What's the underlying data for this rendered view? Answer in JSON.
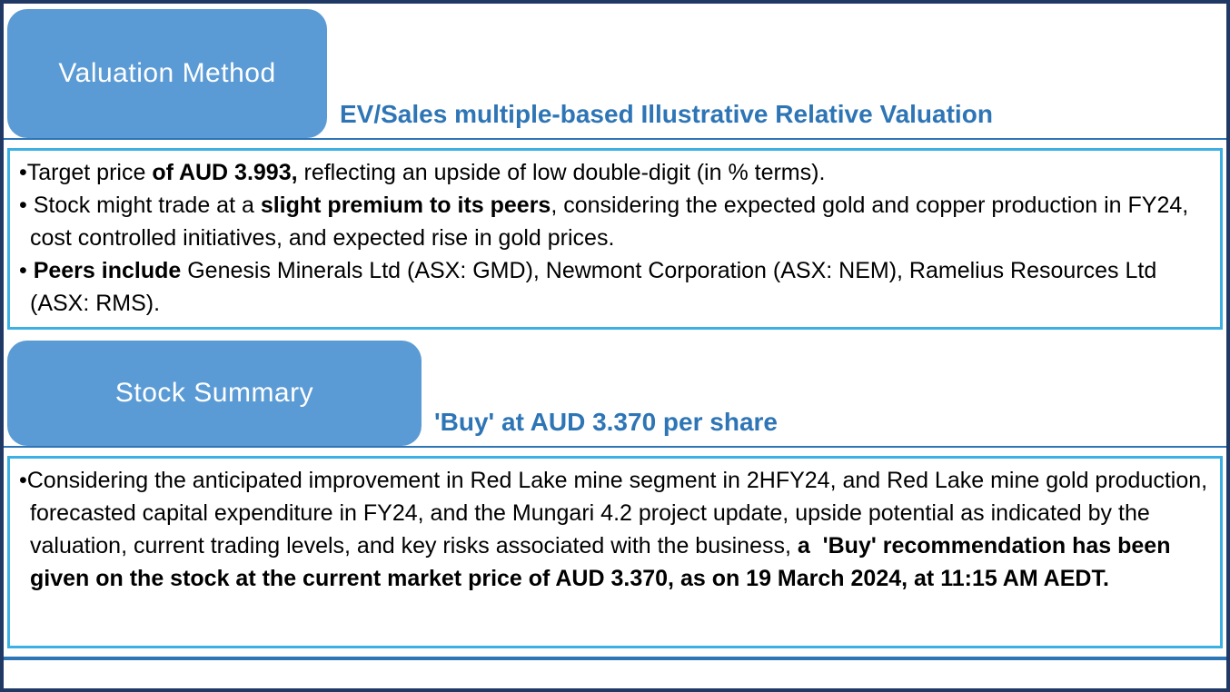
{
  "colors": {
    "accent": "#5b9bd5",
    "heading_blue": "#2e75b6",
    "box_border": "#3cb0e2",
    "outer_border": "#1f3864"
  },
  "sections": [
    {
      "tab_label": "Valuation Method",
      "heading": "EV/Sales multiple-based Illustrative Relative Valuation",
      "bullets": [
        [
          {
            "t": "•Target price ",
            "b": false
          },
          {
            "t": "of AUD 3.993,",
            "b": true
          },
          {
            "t": " reflecting an upside of low double-digit (in % terms).",
            "b": false
          }
        ],
        [
          {
            "t": "• Stock might trade at a ",
            "b": false
          },
          {
            "t": "slight premium to its peers",
            "b": true
          },
          {
            "t": ", considering the expected gold and copper production in FY24, cost controlled initiatives, and expected rise in gold prices.",
            "b": false
          }
        ],
        [
          {
            "t": "• ",
            "b": false
          },
          {
            "t": "Peers include",
            "b": true
          },
          {
            "t": " Genesis Minerals Ltd (ASX: GMD), Newmont Corporation (ASX: NEM), Ramelius Resources Ltd (ASX: RMS).",
            "b": false
          }
        ]
      ]
    },
    {
      "tab_label": "Stock Summary",
      "heading": "'Buy' at AUD 3.370 per share",
      "bullets": [
        [
          {
            "t": "•Considering the anticipated improvement in Red Lake mine segment in 2HFY24, and Red Lake mine gold production, forecasted capital expenditure in FY24, and the Mungari 4.2 project update, upside potential as indicated by the valuation, current trading levels, and key risks associated with the business, ",
            "b": false
          },
          {
            "t": "a  'Buy' recommendation has been given on the stock at the current market price of AUD 3.370, as on 19 March 2024, at 11:15 AM AEDT.",
            "b": true
          }
        ]
      ]
    }
  ]
}
